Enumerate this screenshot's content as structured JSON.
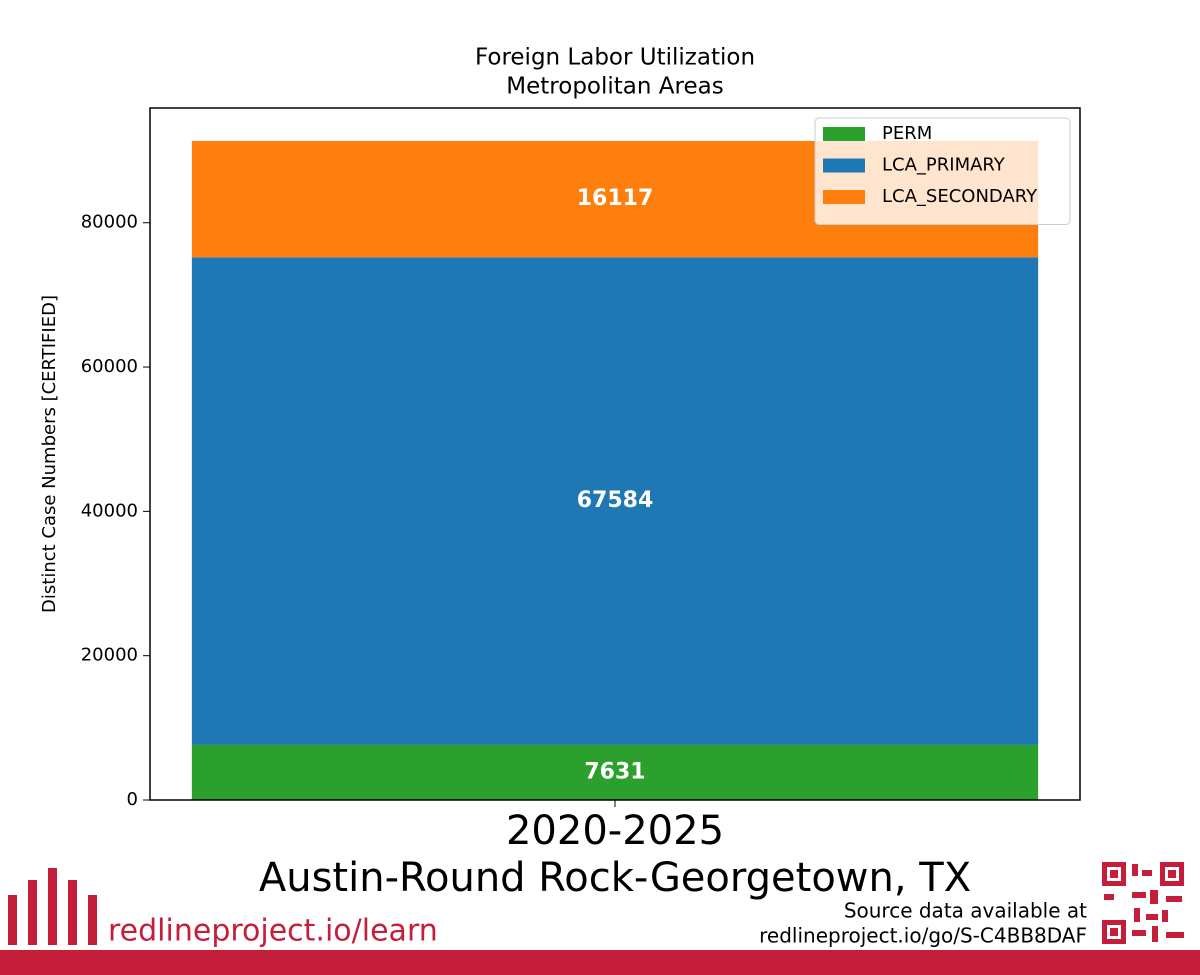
{
  "chart_data": {
    "type": "bar",
    "stacked": true,
    "title": "Foreign Labor Utilization",
    "subtitle": "Metropolitan Areas",
    "ylabel": "Distinct Case Numbers [CERTIFIED]",
    "xlabel": "Austin-Round Rock-Georgetown, TX",
    "categories": [
      "2020-2025"
    ],
    "series": [
      {
        "name": "PERM",
        "color": "#2ca02c",
        "values": [
          7631
        ]
      },
      {
        "name": "LCA_PRIMARY",
        "color": "#1f77b4",
        "values": [
          67584
        ]
      },
      {
        "name": "LCA_SECONDARY",
        "color": "#ff7f0e",
        "values": [
          16117
        ]
      }
    ],
    "ylim": [
      0,
      95900
    ],
    "yticks": [
      0,
      20000,
      40000,
      60000,
      80000
    ],
    "legend": "upper right",
    "grid": false
  },
  "footer": {
    "link": "redlineproject.io/learn",
    "source_line1": "Source data available at",
    "source_line2": "redlineproject.io/go/S-C4BB8DAF"
  }
}
